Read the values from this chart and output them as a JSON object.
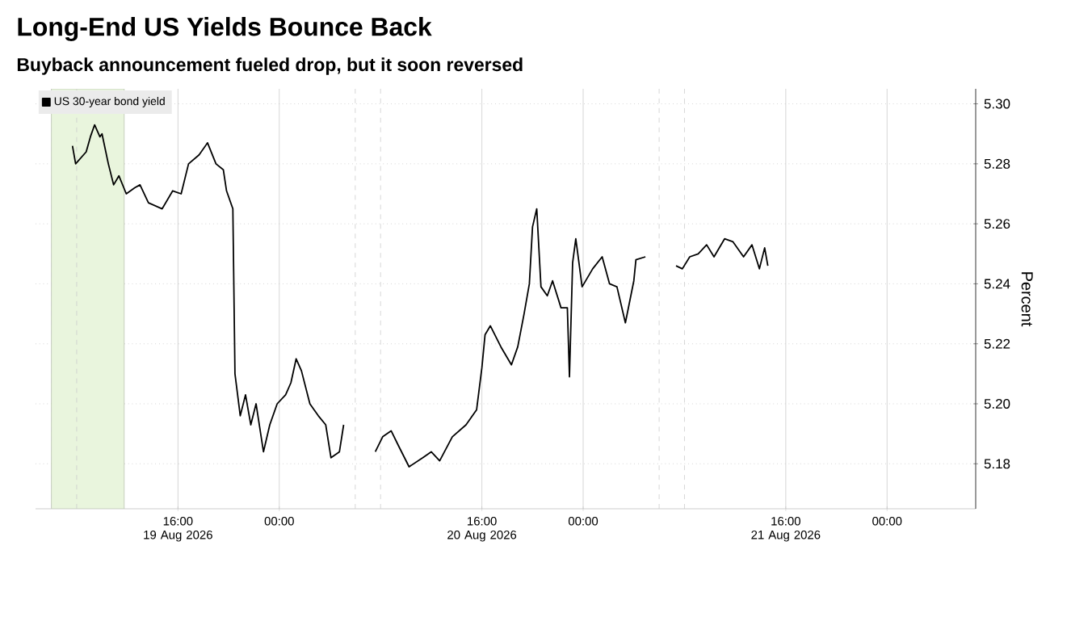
{
  "chart_data": {
    "type": "line",
    "title": "Long-End US Yields Bounce Back",
    "subtitle": "Buyback announcement fueled drop, but it soon reversed",
    "ylabel": "Percent",
    "xlim": [
      "2026-08-19T04:45",
      "2026-08-22T07:00"
    ],
    "ylim": [
      5.165,
      5.305
    ],
    "xticks": [
      {
        "value": "2026-08-19T16:00",
        "label": "16:00 19 Aug 2026"
      },
      {
        "value": "2026-08-20T00:00",
        "label": "00:00"
      },
      {
        "value": "2026-08-20T16:00",
        "label": "16:00 20 Aug 2026"
      },
      {
        "value": "2026-08-21T00:00",
        "label": "00:00"
      },
      {
        "value": "2026-08-21T16:00",
        "label": "16:00 21 Aug 2026"
      },
      {
        "value": "2026-08-22T00:00",
        "label": "00:00"
      }
    ],
    "yticks": [
      5.18,
      {
        "value": 5.2,
        "label": "5.20"
      },
      5.22,
      5.24,
      5.26,
      5.28,
      {
        "value": 5.3,
        "label": "5.30"
      }
    ],
    "grid": true,
    "legend": "top left",
    "bands": [
      {
        "axis": "x",
        "from": "2026-08-19T06:00",
        "to": "2026-08-19T11:45",
        "color": "#e9f5dd"
      }
    ],
    "ref_lines": [
      {
        "axis": "x",
        "value": "2026-08-19T06:00",
        "color": "#cccccc",
        "line_style": "dashed"
      },
      {
        "axis": "x",
        "value": "2026-08-19T08:00",
        "color": "#cccccc",
        "line_style": "dashed"
      },
      {
        "axis": "x",
        "value": "2026-08-20T06:00",
        "color": "#cccccc",
        "line_style": "dashed"
      },
      {
        "axis": "x",
        "value": "2026-08-20T08:00",
        "color": "#cccccc",
        "line_style": "dashed"
      },
      {
        "axis": "x",
        "value": "2026-08-21T06:00",
        "color": "#cccccc",
        "line_style": "dashed"
      },
      {
        "axis": "x",
        "value": "2026-08-21T08:00",
        "color": "#cccccc",
        "line_style": "dashed"
      }
    ],
    "series": [
      {
        "name": "US 30-year bond yield",
        "color": "#000000",
        "x": [
          "2026-08-19T07:40",
          "2026-08-19T07:55",
          "2026-08-19T08:45",
          "2026-08-19T09:05",
          "2026-08-19T09:25",
          "2026-08-19T09:50",
          "2026-08-19T10:00",
          "2026-08-19T10:30",
          "2026-08-19T10:55",
          "2026-08-19T11:20",
          "2026-08-19T11:55",
          "2026-08-19T12:35",
          "2026-08-19T13:00",
          "2026-08-19T13:40",
          "2026-08-19T14:45",
          "2026-08-19T15:35",
          "2026-08-19T16:15",
          "2026-08-19T16:50",
          "2026-08-19T17:40",
          "2026-08-19T18:20",
          "2026-08-19T19:00",
          "2026-08-19T19:35",
          "2026-08-19T19:50",
          "2026-08-19T20:20",
          "2026-08-19T20:30",
          "2026-08-19T20:55",
          "2026-08-19T21:20",
          "2026-08-19T21:45",
          "2026-08-19T22:10",
          "2026-08-19T22:45",
          "2026-08-19T23:15",
          "2026-08-19T23:50",
          "2026-08-20T00:30",
          "2026-08-20T00:55",
          "2026-08-20T01:20",
          "2026-08-20T01:45",
          "2026-08-20T02:25",
          "2026-08-20T03:05",
          "2026-08-20T03:40",
          "2026-08-20T04:05",
          "2026-08-20T04:45",
          "2026-08-20T05:05",
          "2026-08-20T06:30",
          "2026-08-20T07:35",
          "2026-08-20T08:10",
          "2026-08-20T08:50",
          "2026-08-20T09:25",
          "2026-08-20T10:15",
          "2026-08-20T11:20",
          "2026-08-20T12:00",
          "2026-08-20T12:40",
          "2026-08-20T13:40",
          "2026-08-20T14:45",
          "2026-08-20T15:35",
          "2026-08-20T16:00",
          "2026-08-20T16:15",
          "2026-08-20T16:40",
          "2026-08-20T17:30",
          "2026-08-20T18:20",
          "2026-08-20T18:50",
          "2026-08-20T19:20",
          "2026-08-20T19:45",
          "2026-08-20T20:00",
          "2026-08-20T20:20",
          "2026-08-20T20:40",
          "2026-08-20T21:10",
          "2026-08-20T21:35",
          "2026-08-20T22:15",
          "2026-08-20T22:45",
          "2026-08-20T22:55",
          "2026-08-20T23:10",
          "2026-08-20T23:25",
          "2026-08-20T23:55",
          "2026-08-21T00:45",
          "2026-08-21T01:30",
          "2026-08-21T02:05",
          "2026-08-21T02:40",
          "2026-08-21T03:20",
          "2026-08-21T04:00",
          "2026-08-21T04:10",
          "2026-08-21T04:55",
          "2026-08-21T06:00",
          "2026-08-21T07:20",
          "2026-08-21T07:50",
          "2026-08-21T08:25",
          "2026-08-21T09:05",
          "2026-08-21T09:45",
          "2026-08-21T10:20",
          "2026-08-21T11:10",
          "2026-08-21T11:50",
          "2026-08-21T12:40",
          "2026-08-21T13:20",
          "2026-08-21T13:55",
          "2026-08-21T14:20",
          "2026-08-21T14:35"
        ],
        "values": [
          5.286,
          5.28,
          5.284,
          5.289,
          5.293,
          5.289,
          5.29,
          5.28,
          5.273,
          5.276,
          5.27,
          5.272,
          5.273,
          5.267,
          5.265,
          5.271,
          5.27,
          5.28,
          5.283,
          5.287,
          5.28,
          5.278,
          5.271,
          5.265,
          5.21,
          5.196,
          5.203,
          5.193,
          5.2,
          5.184,
          5.193,
          5.2,
          5.203,
          5.207,
          5.215,
          5.211,
          5.2,
          5.196,
          5.193,
          5.182,
          5.184,
          5.193,
          null,
          5.184,
          5.189,
          5.191,
          5.186,
          5.179,
          5.182,
          5.184,
          5.181,
          5.189,
          5.193,
          5.198,
          5.212,
          5.223,
          5.226,
          5.219,
          5.213,
          5.219,
          5.23,
          5.24,
          5.259,
          5.265,
          5.239,
          5.236,
          5.241,
          5.232,
          5.232,
          5.209,
          5.247,
          5.255,
          5.239,
          5.245,
          5.249,
          5.24,
          5.239,
          5.227,
          5.241,
          5.248,
          5.249,
          null,
          5.246,
          5.245,
          5.249,
          5.25,
          5.253,
          5.249,
          5.255,
          5.254,
          5.249,
          5.253,
          5.245,
          5.252,
          5.246
        ]
      }
    ]
  }
}
